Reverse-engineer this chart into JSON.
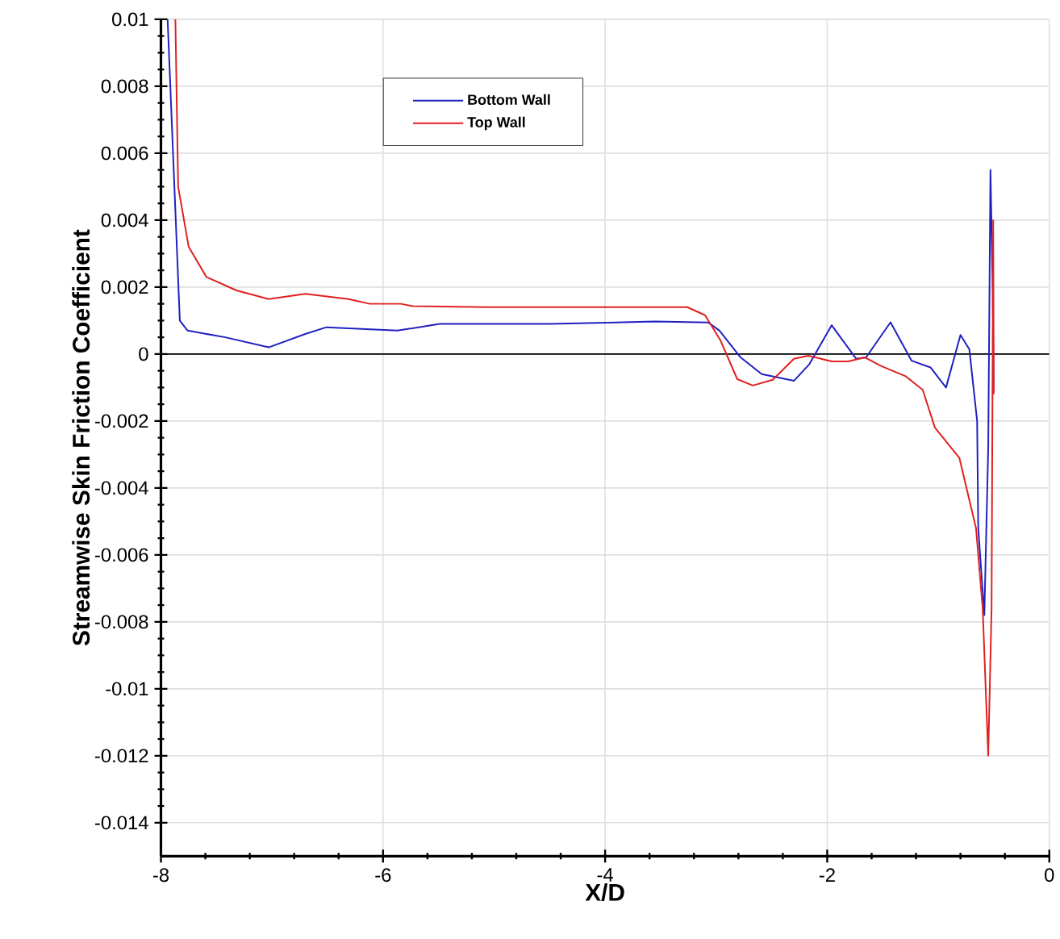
{
  "chart_data": {
    "type": "line",
    "xlabel": "X/D",
    "ylabel": "Streamwise Skin Friction Coefficient",
    "xlim": [
      -8,
      0
    ],
    "ylim": [
      -0.015,
      0.01
    ],
    "xticks": [
      -8,
      -6,
      -4,
      -2,
      0
    ],
    "yticks": [
      -0.014,
      -0.012,
      -0.01,
      -0.008,
      -0.006,
      -0.004,
      -0.002,
      0,
      0.002,
      0.004,
      0.006,
      0.008,
      0.01
    ],
    "grid": true,
    "legend": "top",
    "line_style": "solid",
    "marker": "none",
    "ref_lines": [
      {
        "axis": "y",
        "value": 0,
        "color": "#000000"
      }
    ],
    "series": [
      {
        "name": "Bottom Wall",
        "color": "#2020c0",
        "x": [
          -7.94,
          -7.83,
          -7.76,
          -7.42,
          -7.03,
          -6.7,
          -6.51,
          -5.87,
          -5.49,
          -4.5,
          -3.55,
          -3.07,
          -2.97,
          -2.78,
          -2.59,
          -2.3,
          -2.16,
          -1.96,
          -1.74,
          -1.65,
          -1.43,
          -1.24,
          -1.07,
          -0.93,
          -0.8,
          -0.72,
          -0.65,
          -0.64,
          -0.585,
          -0.55,
          -0.53,
          -0.51,
          -0.5
        ],
        "values": [
          0.01,
          0.001,
          0.0007,
          0.0005,
          0.0002,
          0.0006,
          0.0008,
          0.0007,
          0.0009,
          0.0009,
          0.00097,
          0.00094,
          0.0007,
          -0.0001,
          -0.0006,
          -0.0008,
          -0.0003,
          0.00086,
          -0.00014,
          -0.0001,
          0.00095,
          -0.0002,
          -0.0004,
          -0.001,
          0.00057,
          0.00014,
          -0.002,
          -0.0052,
          -0.0078,
          -0.0028,
          0.0055,
          0.002,
          -0.0011
        ]
      },
      {
        "name": "Top Wall",
        "color": "#e02020",
        "x": [
          -7.87,
          -7.845,
          -7.75,
          -7.59,
          -7.32,
          -7.03,
          -6.7,
          -6.31,
          -6.12,
          -5.84,
          -5.73,
          -5.06,
          -3.94,
          -3.26,
          -3.1,
          -2.96,
          -2.81,
          -2.67,
          -2.49,
          -2.3,
          -2.17,
          -1.96,
          -1.81,
          -1.66,
          -1.52,
          -1.29,
          -1.14,
          -1.03,
          -0.81,
          -0.66,
          -0.6,
          -0.55,
          -0.52,
          -0.505,
          -0.5
        ],
        "values": [
          0.01,
          0.005,
          0.0032,
          0.0023,
          0.0019,
          0.00164,
          0.0018,
          0.00164,
          0.0015,
          0.0015,
          0.00143,
          0.0014,
          0.0014,
          0.0014,
          0.00116,
          0.0004,
          -0.00075,
          -0.00094,
          -0.00077,
          -0.00014,
          -5e-05,
          -0.00022,
          -0.00022,
          -0.0001,
          -0.00035,
          -0.00067,
          -0.00107,
          -0.0022,
          -0.0031,
          -0.0052,
          -0.0076,
          -0.012,
          -0.0076,
          0.004,
          -0.0012
        ]
      }
    ]
  }
}
